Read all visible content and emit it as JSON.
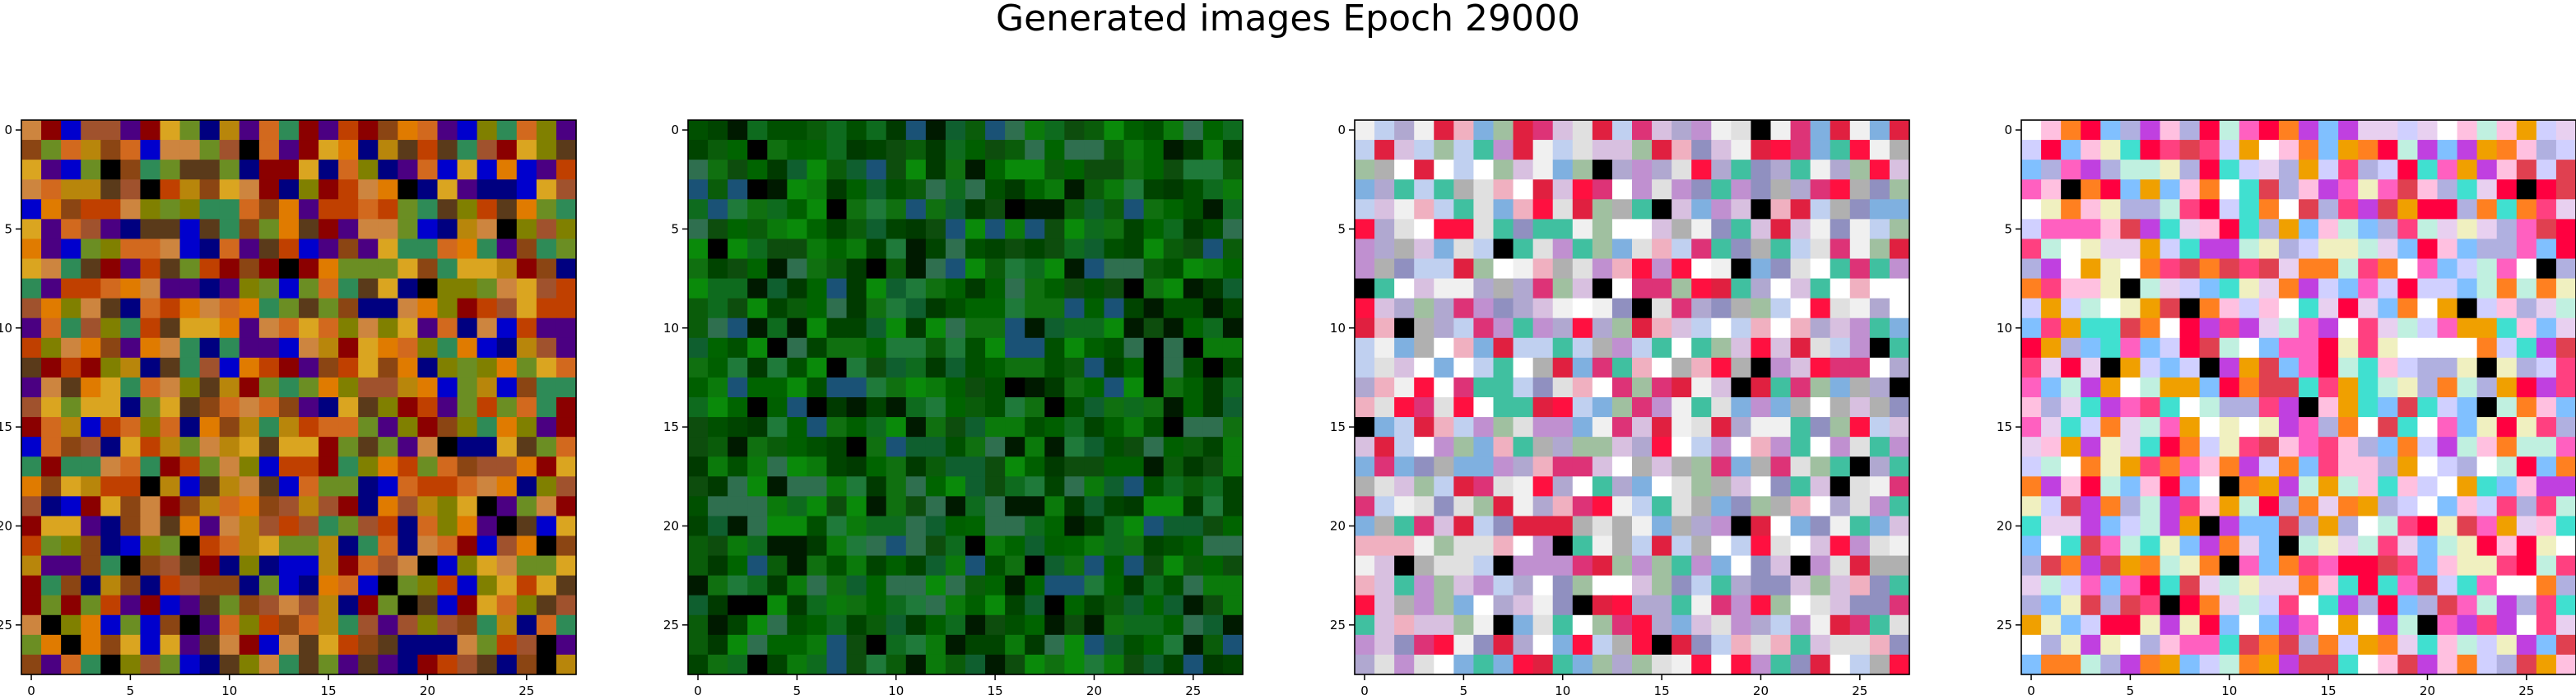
{
  "figure": {
    "title": "Generated images Epoch 29000"
  },
  "chart_data": [
    {
      "type": "heatmap",
      "description_of_values": "28x28 RGB generated image",
      "xticks": [
        0,
        5,
        10,
        15,
        20,
        25
      ],
      "yticks": [
        0,
        5,
        10,
        15,
        20,
        25
      ],
      "xlim": [
        -0.5,
        27.5
      ],
      "ylim": [
        27.5,
        -0.5
      ],
      "palette": [
        "#8b4513",
        "#a0522d",
        "#b8860b",
        "#cd853f",
        "#d2691e",
        "#8b0000",
        "#6b8e23",
        "#808000",
        "#daa520",
        "#2e8b57",
        "#000080",
        "#0000cd",
        "#4b0082",
        "#e07b00",
        "#5a3a1a",
        "#c04000"
      ],
      "seed": 11,
      "pattern": "mixed-warm"
    },
    {
      "type": "heatmap",
      "description_of_values": "28x28 RGB generated image",
      "xticks": [
        0,
        5,
        10,
        15,
        20,
        25
      ],
      "yticks": [
        0,
        5,
        10,
        15,
        20,
        25
      ],
      "xlim": [
        -0.5,
        27.5
      ],
      "ylim": [
        27.5,
        -0.5
      ],
      "palette": [
        "#006400",
        "#0a5c0a",
        "#0b7a0b",
        "#005000",
        "#0e6b1e",
        "#1f7a3a",
        "#003a00",
        "#0a8a0a",
        "#2f6f4f",
        "#004400",
        "#0d4d0d",
        "#001a00",
        "#0f5f2f",
        "#1a5276",
        "#107010",
        "#005f00"
      ],
      "seed": 23,
      "pattern": "green"
    },
    {
      "type": "heatmap",
      "description_of_values": "28x28 RGB generated image",
      "xticks": [
        0,
        5,
        10,
        15,
        20,
        25
      ],
      "yticks": [
        0,
        5,
        10,
        15,
        20,
        25
      ],
      "xlim": [
        -0.5,
        27.5
      ],
      "ylim": [
        27.5,
        -0.5
      ],
      "palette": [
        "#b0a8d0",
        "#d8c0e0",
        "#c0d0f0",
        "#e0e0e0",
        "#f0f0f0",
        "#e02040",
        "#dd3377",
        "#a0c0a0",
        "#9090c0",
        "#f0b0c0",
        "#ffffff",
        "#c090d0",
        "#7fb0e0",
        "#40c0a0",
        "#ff1040",
        "#b0b0b0"
      ],
      "seed": 37,
      "pattern": "pastel-red"
    },
    {
      "type": "heatmap",
      "description_of_values": "28x28 RGB generated image",
      "xticks": [
        0,
        5,
        10,
        15,
        20,
        25
      ],
      "yticks": [
        0,
        5,
        10,
        15,
        20,
        25
      ],
      "xlim": [
        -0.5,
        27.5
      ],
      "ylim": [
        27.5,
        -0.5
      ],
      "palette": [
        "#e8d0f0",
        "#ffc0e0",
        "#c0f0e0",
        "#ff0040",
        "#ffffff",
        "#f0a000",
        "#c040e0",
        "#80c0ff",
        "#ff4080",
        "#d0d0ff",
        "#f0f0c0",
        "#ff8020",
        "#40e0d0",
        "#b0b0e0",
        "#ff60c0",
        "#e04050"
      ],
      "seed": 53,
      "pattern": "pastel-pink"
    }
  ]
}
